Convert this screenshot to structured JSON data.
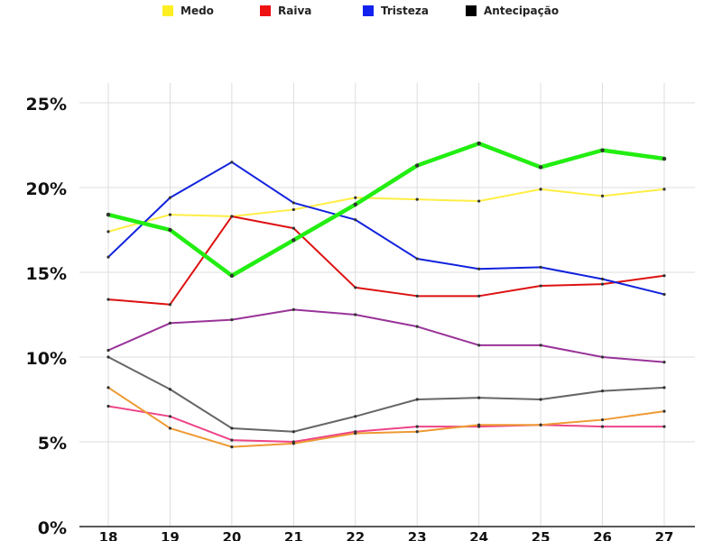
{
  "chart_data": {
    "type": "line",
    "title": "",
    "xlabel": "",
    "ylabel": "",
    "x": [
      18,
      19,
      20,
      21,
      22,
      23,
      24,
      25,
      26,
      27
    ],
    "ylim": [
      0,
      25
    ],
    "yticks": [
      "0%",
      "5%",
      "10%",
      "15%",
      "20%",
      "25%"
    ],
    "ytick_values": [
      0,
      5,
      10,
      15,
      20,
      25
    ],
    "grid": true,
    "legend_position": "top",
    "legend": [
      {
        "name": "Medo",
        "color": "#ffee22"
      },
      {
        "name": "Raiva",
        "color": "#ee1111"
      },
      {
        "name": "Tristeza",
        "color": "#1122ee"
      },
      {
        "name": "Antecipação",
        "color": "#000000"
      }
    ],
    "series": [
      {
        "color": "#ffee44",
        "values": [
          17.4,
          18.4,
          18.3,
          18.7,
          19.4,
          19.3,
          19.2,
          19.9,
          19.5,
          19.9
        ]
      },
      {
        "color": "#dd1111",
        "values": [
          13.4,
          13.1,
          18.3,
          17.6,
          14.1,
          13.6,
          13.6,
          14.2,
          14.3,
          14.8
        ]
      },
      {
        "color": "#1122dd",
        "values": [
          15.9,
          19.4,
          21.5,
          19.1,
          18.1,
          15.8,
          15.2,
          15.3,
          14.6,
          13.7
        ]
      },
      {
        "color": "#22ee11",
        "values": [
          18.4,
          17.5,
          14.8,
          16.9,
          19.0,
          21.3,
          22.6,
          21.2,
          22.2,
          21.7
        ]
      },
      {
        "color": "#993399",
        "values": [
          10.4,
          12.0,
          12.2,
          12.8,
          12.5,
          11.8,
          10.7,
          10.7,
          10.0,
          9.7
        ]
      },
      {
        "color": "#666666",
        "values": [
          10.0,
          8.1,
          5.8,
          5.6,
          6.5,
          7.5,
          7.6,
          7.5,
          8.0,
          8.2
        ]
      },
      {
        "color": "#ee4488",
        "values": [
          7.1,
          6.5,
          5.1,
          5.0,
          5.6,
          5.9,
          5.9,
          6.0,
          5.9,
          5.9
        ]
      },
      {
        "color": "#ee9933",
        "values": [
          8.2,
          5.8,
          4.7,
          4.9,
          5.5,
          5.6,
          6.0,
          6.0,
          6.3,
          6.8
        ]
      }
    ]
  }
}
